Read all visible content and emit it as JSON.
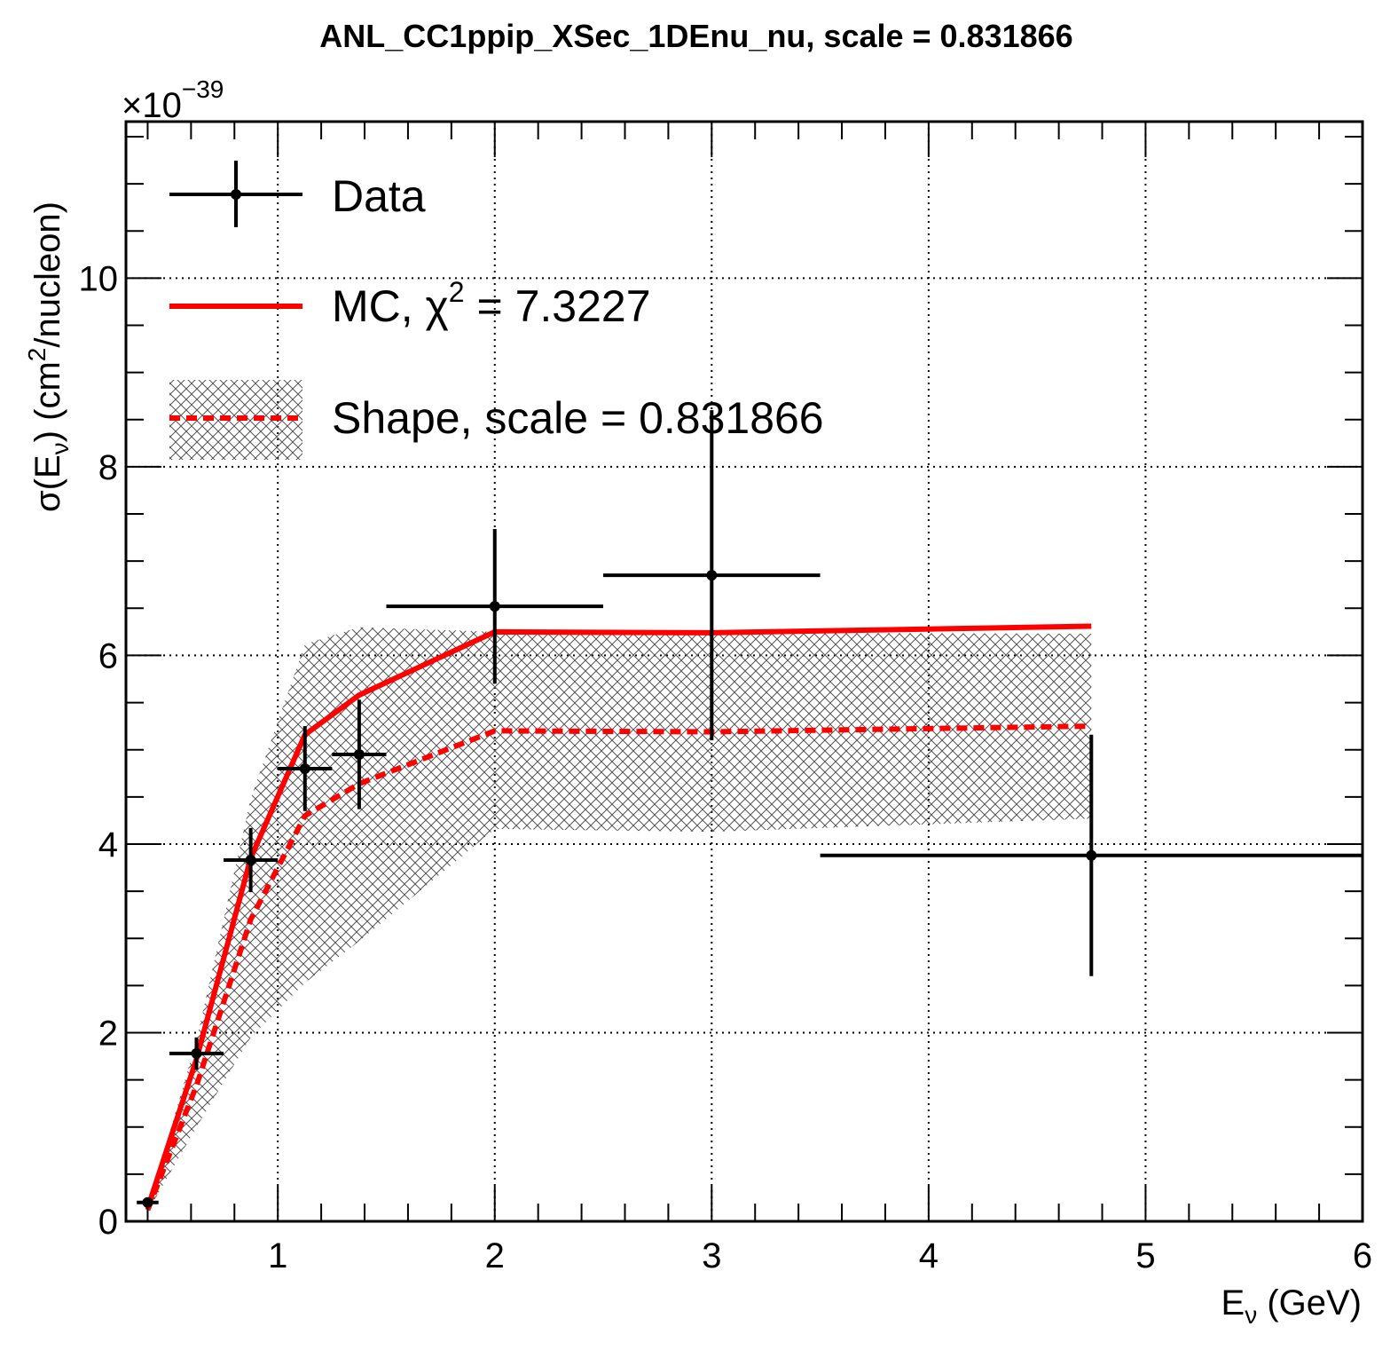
{
  "chart_data": {
    "type": "line",
    "title": "ANL_CC1ppip_XSec_1DEnu_nu, scale = 0.831866",
    "xlabel": {
      "main": "E",
      "sub": "ν",
      "unit": " (GeV)"
    },
    "ylabel": {
      "pre": "σ(E",
      "sub": "ν",
      "mid": ") (cm",
      "sup": "2",
      "post": "/nucleon)"
    },
    "exponent": {
      "base": "×10",
      "power": "−39"
    },
    "xlim": [
      0.3,
      6
    ],
    "ylim": [
      0,
      11.66
    ],
    "xticks": [
      "1",
      "2",
      "3",
      "4",
      "5",
      "6"
    ],
    "xtick_values": [
      1,
      2,
      3,
      4,
      5,
      6
    ],
    "yticks": [
      "0",
      "2",
      "4",
      "6",
      "8",
      "10"
    ],
    "ytick_values": [
      0,
      2,
      4,
      6,
      8,
      10
    ],
    "grid": true,
    "legend_position": "top-left",
    "colors": {
      "data": "#000000",
      "mc": "#ff0000",
      "band": "#555555"
    },
    "legend": [
      {
        "key": "data",
        "label": "Data"
      },
      {
        "key": "mc",
        "label": "MC, χ",
        "sup": "2",
        "rest": " = 7.3227"
      },
      {
        "key": "shape",
        "label": "Shape, scale = 0.831866"
      }
    ],
    "series": [
      {
        "name": "Data",
        "kind": "points",
        "x": [
          0.4,
          0.625,
          0.875,
          1.125,
          1.375,
          2.0,
          3.0,
          4.75
        ],
        "xerr_low": [
          0.05,
          0.125,
          0.125,
          0.125,
          0.125,
          0.5,
          0.5,
          1.25
        ],
        "xerr_high": [
          0.05,
          0.125,
          0.125,
          0.125,
          0.125,
          0.5,
          0.5,
          1.25
        ],
        "y": [
          0.2,
          1.78,
          3.83,
          4.8,
          4.95,
          6.52,
          6.85,
          3.88
        ],
        "yerr": [
          0.02,
          0.17,
          0.34,
          0.45,
          0.58,
          0.82,
          1.75,
          1.28
        ]
      },
      {
        "name": "MC",
        "kind": "line",
        "x": [
          0.4,
          0.625,
          0.875,
          1.125,
          1.375,
          2.0,
          3.0,
          4.75
        ],
        "y": [
          0.14,
          1.72,
          3.85,
          5.16,
          5.58,
          6.25,
          6.24,
          6.31
        ]
      },
      {
        "name": "Shape",
        "kind": "dashed-line-with-band",
        "x": [
          0.4,
          0.625,
          0.875,
          1.125,
          1.375,
          2.0,
          3.0,
          4.75
        ],
        "y": [
          0.12,
          1.44,
          3.2,
          4.3,
          4.64,
          5.2,
          5.19,
          5.25
        ],
        "band_low": [
          0.1,
          1.0,
          1.95,
          2.53,
          2.97,
          4.16,
          4.13,
          4.27
        ],
        "band_high": [
          0.14,
          1.92,
          4.48,
          6.12,
          6.3,
          6.25,
          6.24,
          6.23
        ]
      }
    ]
  }
}
